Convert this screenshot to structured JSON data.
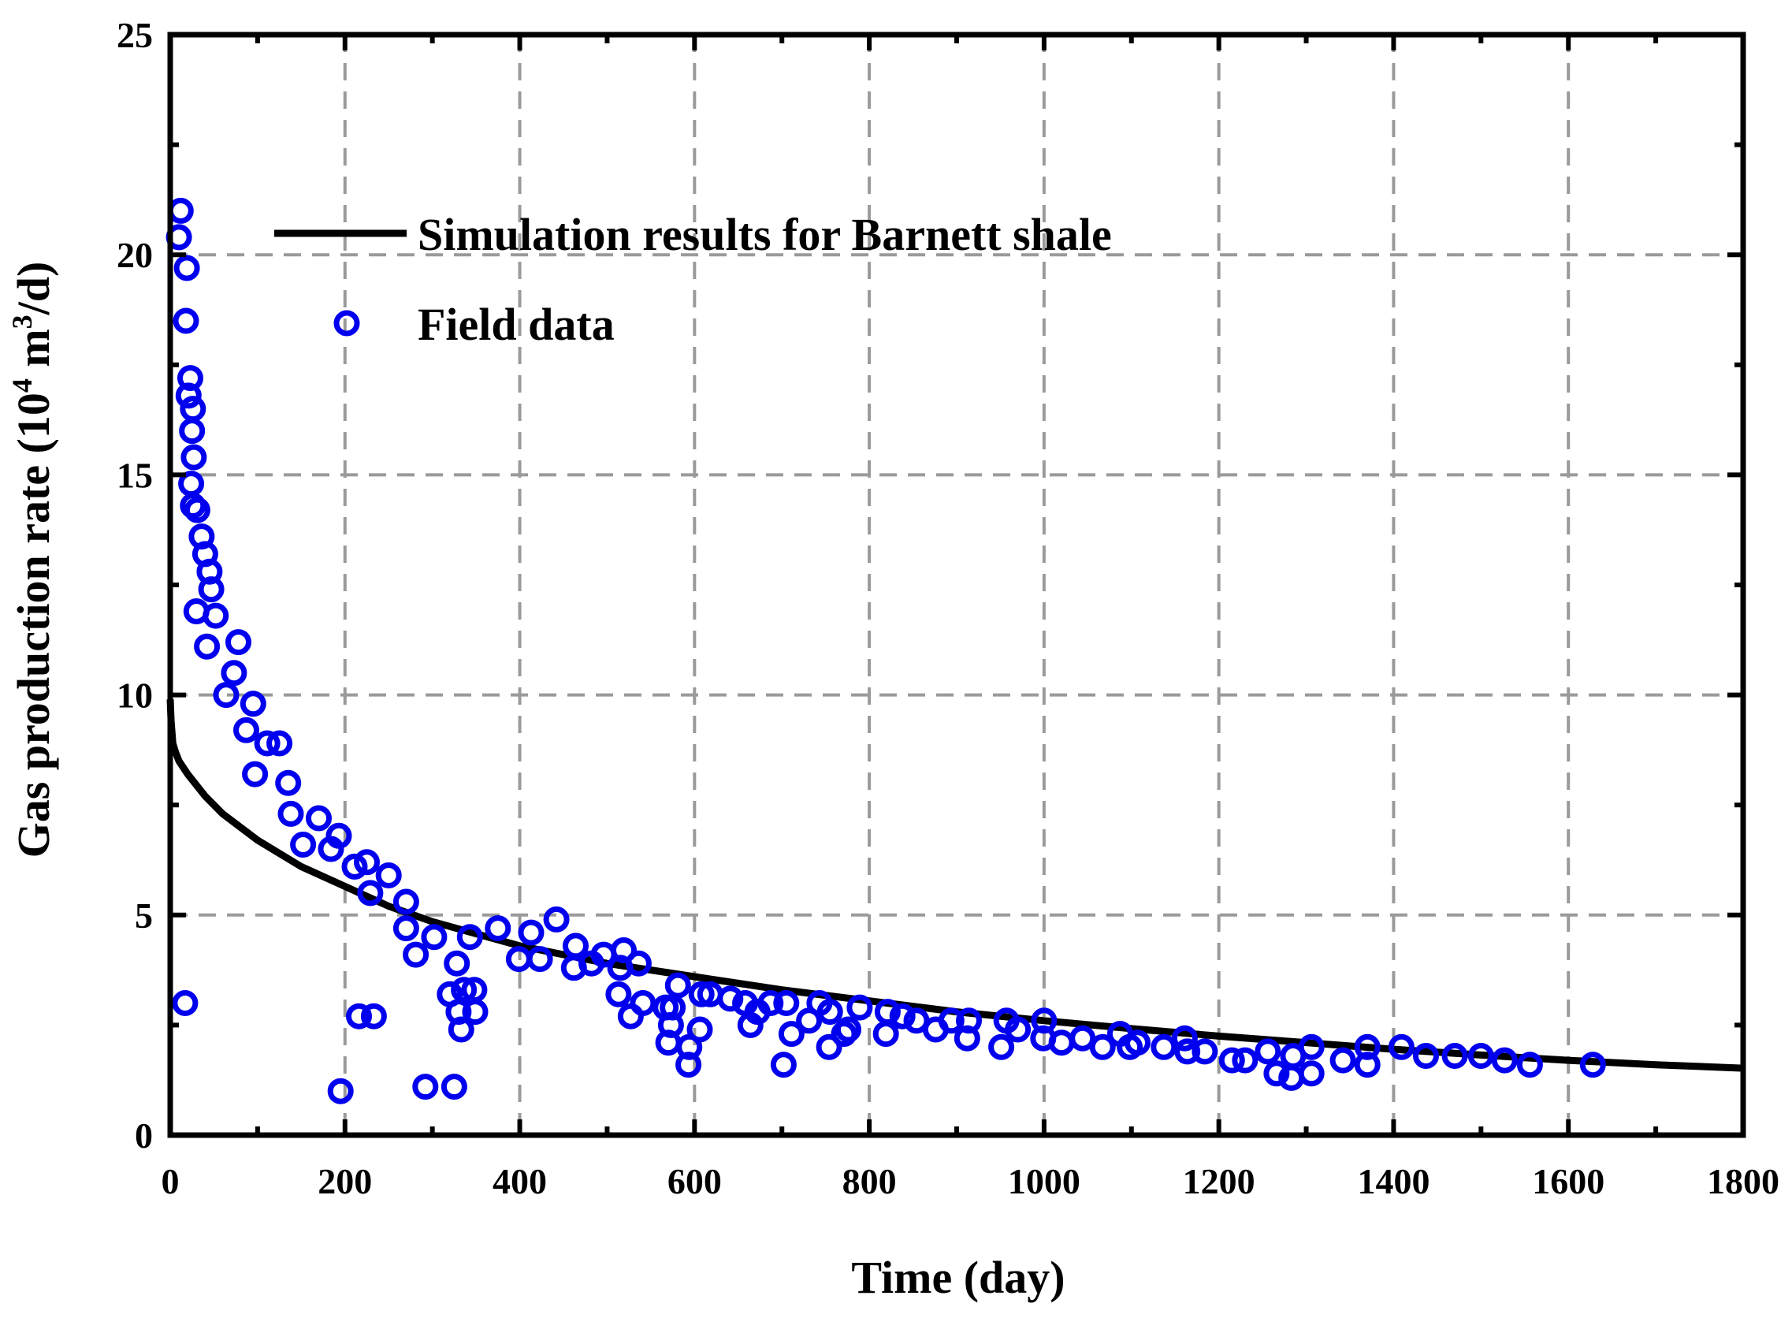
{
  "chart_data": {
    "type": "scatter",
    "xlabel": "Time (day)",
    "ylabel": "Gas production rate (10",
    "ylabel_sup1": "4",
    "ylabel_mid": " m",
    "ylabel_sup2": "3",
    "ylabel_end": "/d)",
    "xlim": [
      0,
      1800
    ],
    "ylim": [
      0,
      25
    ],
    "xticks": [
      0,
      200,
      400,
      600,
      800,
      1000,
      1200,
      1400,
      1600,
      1800
    ],
    "yticks": [
      0,
      5,
      10,
      15,
      20,
      25
    ],
    "xtick_labels": [
      "0",
      "200",
      "400",
      "600",
      "800",
      "1000",
      "1200",
      "1400",
      "1600",
      "1800"
    ],
    "ytick_labels": [
      "0",
      "5",
      "10",
      "15",
      "20",
      "25"
    ],
    "grid": true,
    "legend_placement": "top-left",
    "colors": {
      "line": "#000000",
      "markers": "#0000ee",
      "grid": "#9a9a9a"
    },
    "series": [
      {
        "name": "Simulation results for Barnett shale",
        "kind": "line",
        "x": [
          0,
          1,
          3,
          6,
          10,
          20,
          40,
          60,
          80,
          100,
          150,
          200,
          250,
          300,
          400,
          500,
          600,
          700,
          800,
          900,
          1000,
          1100,
          1200,
          1300,
          1400,
          1500,
          1600,
          1700,
          1800
        ],
        "y": [
          9.9,
          9.4,
          8.9,
          8.7,
          8.5,
          8.2,
          7.7,
          7.3,
          7.0,
          6.7,
          6.1,
          5.65,
          5.2,
          4.85,
          4.3,
          3.9,
          3.6,
          3.3,
          3.05,
          2.8,
          2.6,
          2.42,
          2.25,
          2.1,
          1.95,
          1.82,
          1.7,
          1.6,
          1.52
        ]
      },
      {
        "name": "Field data",
        "kind": "scatter",
        "x": [
          12,
          10,
          19,
          18,
          23,
          21,
          26,
          25,
          27,
          24,
          26,
          31,
          36,
          40,
          30,
          45,
          47,
          42,
          52,
          78,
          73,
          64,
          95,
          87,
          111,
          97,
          125,
          135,
          138,
          170,
          152,
          184,
          193,
          211,
          225,
          229,
          250,
          270,
          270,
          281,
          302,
          320,
          328,
          343,
          336,
          348,
          330,
          333,
          349,
          216,
          233,
          292,
          325,
          195,
          17,
          375,
          399,
          413,
          423,
          442,
          464,
          462,
          482,
          496,
          519,
          515,
          513,
          536,
          541,
          527,
          575,
          581,
          567,
          573,
          570,
          594,
          608,
          606,
          593,
          618,
          641,
          658,
          672,
          687,
          664,
          705,
          711,
          702,
          743,
          754,
          731,
          755,
          771,
          789,
          776,
          821,
          819,
          838,
          854,
          876,
          894,
          914,
          912,
          957,
          970,
          951,
          1000,
          999,
          1020,
          1044,
          1067,
          1087,
          1107,
          1098,
          1137,
          1161,
          1164,
          1184,
          1215,
          1230,
          1256,
          1266,
          1285,
          1283,
          1306,
          1306,
          1342,
          1370,
          1370,
          1409,
          1437,
          1470,
          1500,
          1527,
          1556,
          1628
        ],
        "y": [
          21.0,
          20.4,
          19.7,
          18.5,
          17.2,
          16.8,
          16.5,
          16.0,
          15.4,
          14.8,
          14.3,
          14.2,
          13.6,
          13.2,
          11.9,
          12.8,
          12.4,
          11.1,
          11.8,
          11.2,
          10.5,
          10.0,
          9.8,
          9.2,
          8.9,
          8.2,
          8.9,
          8.0,
          7.3,
          7.2,
          6.6,
          6.5,
          6.8,
          6.1,
          6.2,
          5.5,
          5.9,
          5.3,
          4.7,
          4.1,
          4.5,
          3.2,
          3.9,
          4.5,
          3.3,
          3.3,
          2.8,
          2.4,
          2.8,
          2.7,
          2.7,
          1.1,
          1.1,
          1.0,
          3.0,
          4.7,
          4.0,
          4.6,
          4.0,
          4.9,
          4.3,
          3.8,
          3.9,
          4.1,
          4.2,
          3.8,
          3.2,
          3.9,
          3.0,
          2.7,
          2.9,
          3.4,
          2.9,
          2.5,
          2.1,
          2.0,
          3.2,
          2.4,
          1.6,
          3.2,
          3.1,
          3.0,
          2.8,
          3.0,
          2.5,
          3.0,
          2.3,
          1.6,
          3.0,
          2.0,
          2.6,
          2.8,
          2.3,
          2.9,
          2.4,
          2.8,
          2.3,
          2.7,
          2.6,
          2.4,
          2.6,
          2.6,
          2.2,
          2.6,
          2.4,
          2.0,
          2.6,
          2.2,
          2.1,
          2.2,
          2.0,
          2.3,
          2.1,
          2.0,
          2.0,
          2.2,
          1.9,
          1.9,
          1.7,
          1.7,
          1.9,
          1.4,
          1.8,
          1.3,
          2.0,
          1.4,
          1.7,
          2.0,
          1.6,
          2.0,
          1.8,
          1.8,
          1.8,
          1.7,
          1.6,
          1.6
        ]
      }
    ]
  }
}
